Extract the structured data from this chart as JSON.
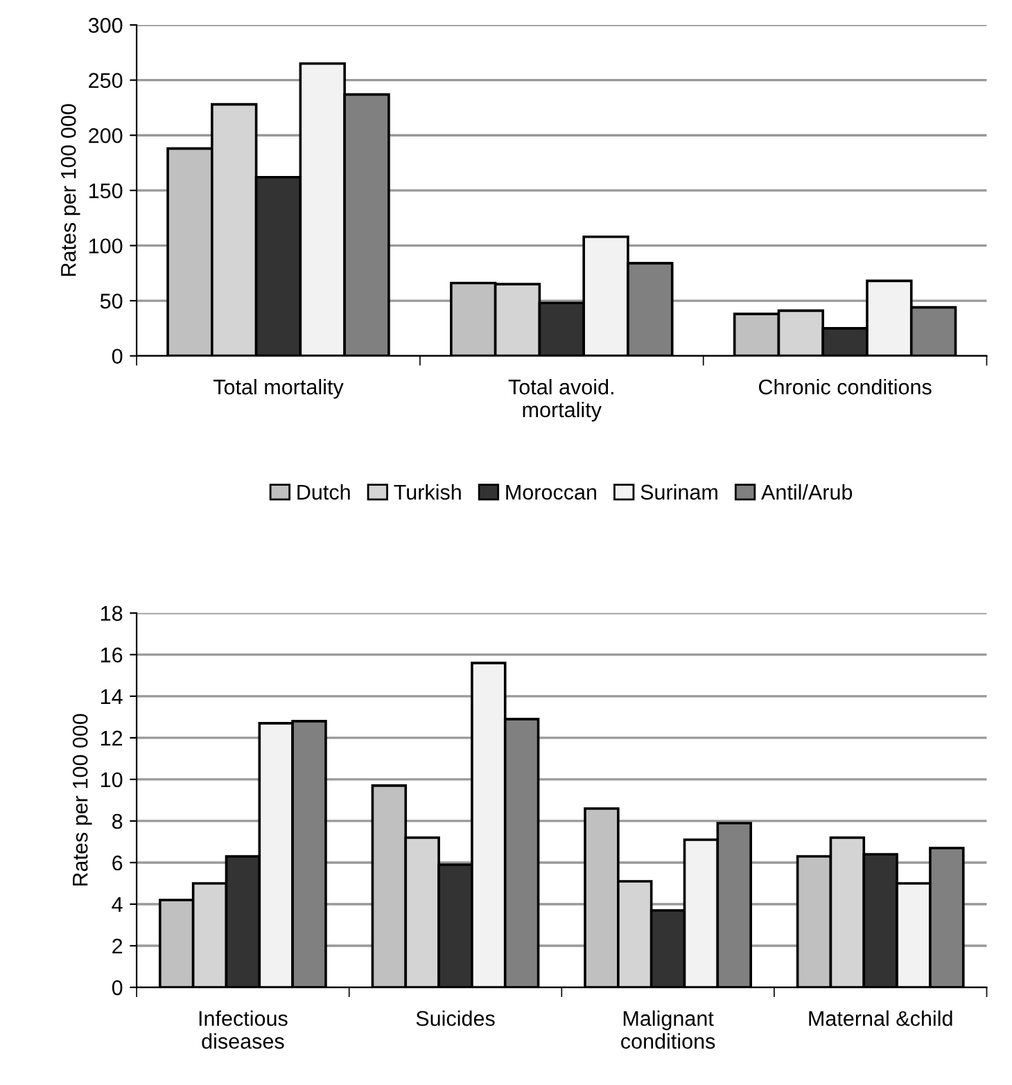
{
  "chart_data": [
    {
      "type": "bar",
      "ylabel": "Rates per 100 000",
      "categories": [
        "Total mortality",
        "Total avoid. mortality",
        "Chronic conditions"
      ],
      "ylim": [
        0,
        300
      ],
      "yticks": [
        0,
        50,
        100,
        150,
        200,
        250,
        300
      ],
      "grid": "y",
      "legend": "bottom",
      "series": [
        {
          "name": "Dutch",
          "color": "#c0c0c0",
          "values": [
            188,
            66,
            38
          ]
        },
        {
          "name": "Turkish",
          "color": "#d4d4d4",
          "values": [
            228,
            65,
            41
          ]
        },
        {
          "name": "Moroccan",
          "color": "#333333",
          "values": [
            162,
            48,
            25
          ]
        },
        {
          "name": "Surinam",
          "color": "#f2f2f2",
          "values": [
            265,
            108,
            68
          ]
        },
        {
          "name": "Antil/Arub",
          "color": "#808080",
          "values": [
            237,
            84,
            44
          ]
        }
      ]
    },
    {
      "type": "bar",
      "ylabel": "Rates per 100 000",
      "categories": [
        "Infectious diseases",
        "Suicides",
        "Malignant conditions",
        "Maternal &child"
      ],
      "ylim": [
        0,
        18
      ],
      "yticks": [
        0,
        2,
        4,
        6,
        8,
        10,
        12,
        14,
        16,
        18
      ],
      "grid": "y",
      "series": [
        {
          "color": "#c0c0c0",
          "values": [
            4.2,
            9.7,
            8.6,
            6.3
          ]
        },
        {
          "color": "#d4d4d4",
          "values": [
            5.0,
            7.2,
            5.1,
            7.2
          ]
        },
        {
          "color": "#333333",
          "values": [
            6.3,
            5.9,
            3.7,
            6.4
          ]
        },
        {
          "color": "#f2f2f2",
          "values": [
            12.7,
            15.6,
            7.1,
            5.0
          ]
        },
        {
          "color": "#808080",
          "values": [
            12.8,
            12.9,
            7.9,
            6.7
          ]
        }
      ]
    }
  ]
}
